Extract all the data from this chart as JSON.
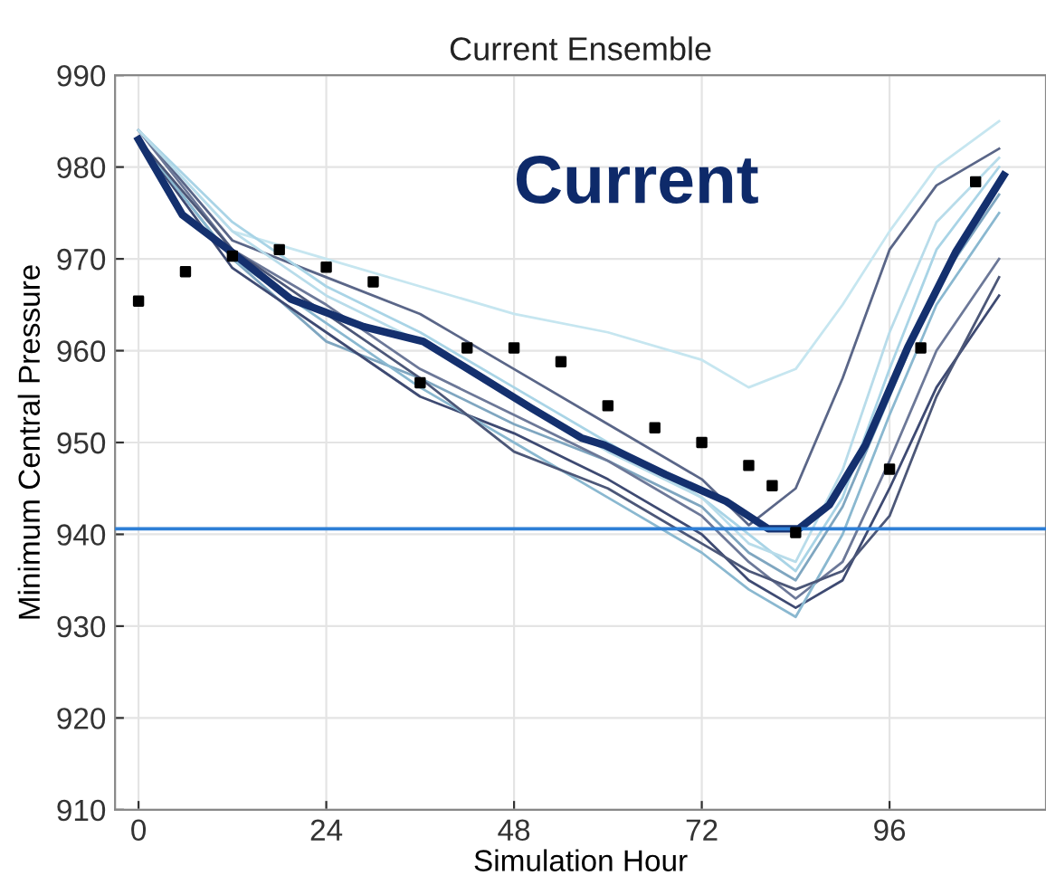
{
  "chart_data": {
    "type": "line",
    "title": "Current Ensemble",
    "xlabel": "Simulation Hour",
    "ylabel": "Minimum Central Pressure",
    "annotations": [
      "Current"
    ],
    "xlim": [
      -3,
      116
    ],
    "ylim": [
      910,
      990
    ],
    "xticks": [
      0,
      24,
      48,
      72,
      96
    ],
    "yticks": [
      910,
      920,
      930,
      940,
      950,
      960,
      970,
      980,
      990
    ],
    "grid": true,
    "legend": false,
    "line_style": "solid",
    "ref_lines": [
      {
        "axis": "y",
        "value": 940.6,
        "label": null,
        "color": "#2e7fd6"
      }
    ],
    "series": [
      {
        "color": "#c6e6f0",
        "x": [
          0,
          12,
          24,
          36,
          48,
          60,
          72,
          78,
          84,
          90,
          96,
          102,
          110
        ],
        "values": [
          984,
          973,
          970,
          967,
          964,
          962,
          959,
          956,
          958,
          965,
          973,
          980,
          985
        ]
      },
      {
        "color": "#5a6688",
        "x": [
          0,
          12,
          24,
          36,
          48,
          60,
          72,
          78,
          84,
          90,
          96,
          102,
          110
        ],
        "values": [
          984,
          972,
          968,
          964,
          958,
          952,
          946,
          941,
          945,
          957,
          971,
          978,
          982
        ]
      },
      {
        "color": "#7fa6c0",
        "x": [
          0,
          12,
          24,
          36,
          48,
          60,
          72,
          78,
          84,
          90,
          96,
          102,
          110
        ],
        "values": [
          983,
          970,
          961,
          957,
          952,
          948,
          943,
          938,
          935,
          943,
          955,
          967,
          977
        ]
      },
      {
        "color": "#3e4a72",
        "x": [
          0,
          12,
          24,
          36,
          48,
          60,
          72,
          78,
          84,
          90,
          96,
          102,
          110
        ],
        "values": [
          983,
          969,
          962,
          955,
          951,
          946,
          940,
          935,
          932,
          935,
          945,
          956,
          966
        ]
      },
      {
        "color": "#6c7898",
        "x": [
          0,
          12,
          24,
          36,
          48,
          60,
          72,
          78,
          84,
          90,
          96,
          102,
          110
        ],
        "values": [
          984,
          971,
          965,
          958,
          953,
          948,
          942,
          937,
          933,
          937,
          948,
          960,
          970
        ]
      },
      {
        "color": "#a9d4e6",
        "x": [
          0,
          12,
          24,
          36,
          48,
          60,
          72,
          78,
          84,
          90,
          96,
          102,
          110
        ],
        "values": [
          984,
          974,
          967,
          962,
          956,
          950,
          944,
          940,
          936,
          944,
          958,
          971,
          980
        ]
      },
      {
        "color": "#8ab8d0",
        "x": [
          0,
          12,
          24,
          36,
          48,
          60,
          72,
          78,
          84,
          90,
          96,
          102,
          110
        ],
        "values": [
          983,
          970,
          963,
          956,
          950,
          944,
          938,
          934,
          931,
          940,
          953,
          965,
          975
        ]
      },
      {
        "color": "#b8dcea",
        "x": [
          0,
          12,
          24,
          36,
          48,
          60,
          72,
          78,
          84,
          90,
          96,
          102,
          110
        ],
        "values": [
          984,
          973,
          966,
          961,
          955,
          949,
          944,
          939,
          937,
          947,
          962,
          974,
          981
        ]
      },
      {
        "color": "#4c5778",
        "x": [
          0,
          12,
          24,
          36,
          48,
          60,
          72,
          78,
          84,
          90,
          96,
          102,
          110
        ],
        "values": [
          983,
          971,
          964,
          957,
          949,
          945,
          939,
          936,
          934,
          936,
          942,
          955,
          968
        ]
      },
      {
        "color": "#14306e",
        "x": [
          0,
          5.6,
          11.8,
          19.5,
          28.8,
          36.4,
          42.7,
          50.3,
          56.6,
          59.6,
          67.4,
          75.1,
          80.5,
          84.4,
          88.3,
          92.9,
          98.3,
          104.5,
          110.6
        ],
        "values": [
          983,
          974.8,
          970.8,
          965.6,
          962.6,
          961,
          957.7,
          953.7,
          950.5,
          949.7,
          946.5,
          943.6,
          940.6,
          940.6,
          943.2,
          949.7,
          960.3,
          970.8,
          979.1
        ]
      },
      {
        "type": "scatter",
        "marker": "square",
        "color": "#000000",
        "x": [
          0,
          6,
          12,
          18,
          24,
          30,
          36,
          42,
          48,
          54,
          60,
          66,
          72,
          78,
          81,
          84,
          96,
          100,
          107
        ],
        "values": [
          965.4,
          968.6,
          970.3,
          971,
          969.1,
          967.5,
          956.5,
          960.3,
          960.3,
          958.8,
          954,
          951.6,
          950,
          947.5,
          945.3,
          940.2,
          947.1,
          960.3,
          978.4
        ]
      }
    ]
  }
}
